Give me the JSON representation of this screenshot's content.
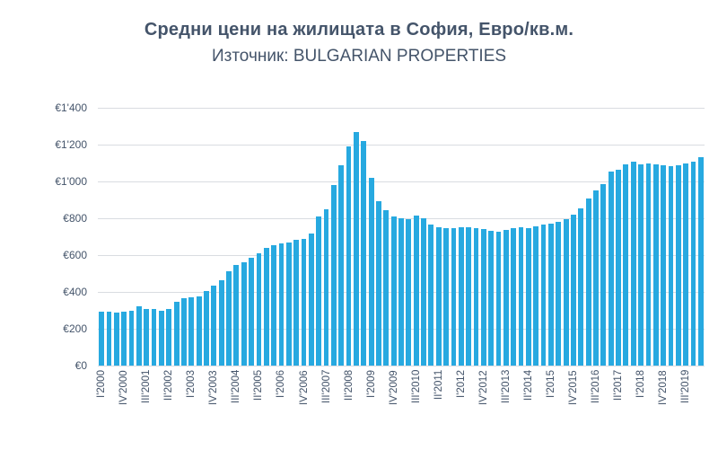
{
  "chart": {
    "title": "Средни цени на жилищата в София, Евро/кв.м.",
    "subtitle": "Източник: BULGARIAN PROPERTIES"
  },
  "chart_data": {
    "type": "bar",
    "title": "Средни цени на жилищата в София, Евро/кв.м.",
    "source": "BULGARIAN PROPERTIES",
    "unit": "EUR per sq.m.",
    "bar_color": "#27A9E0",
    "grid": "horizontal",
    "ylim": [
      0,
      1400
    ],
    "y_ticks": [
      {
        "label": "€0",
        "value": 0
      },
      {
        "label": "€200",
        "value": 200
      },
      {
        "label": "€400",
        "value": 400
      },
      {
        "label": "€600",
        "value": 600
      },
      {
        "label": "€800",
        "value": 800
      },
      {
        "label": "€1'000",
        "value": 1000
      },
      {
        "label": "€1'200",
        "value": 1200
      },
      {
        "label": "€1'400",
        "value": 1400
      }
    ],
    "x_tick_interval": 3,
    "x_tick_labels": [
      "I'2000",
      "IV'2000",
      "III'2001",
      "II'2002",
      "I'2003",
      "IV'2003",
      "III'2004",
      "II'2005",
      "I'2006",
      "IV'2006",
      "III'2007",
      "II'2008",
      "I'2009",
      "IV'2009",
      "III'2010",
      "II'2011",
      "I'2012",
      "IV'2012",
      "III'2013",
      "II'2014",
      "I'2015",
      "IV'2015",
      "III'2016",
      "II'2017",
      "I'2018",
      "IV'2018",
      "III'2019"
    ],
    "categories": [
      "I'2000",
      "II'2000",
      "III'2000",
      "IV'2000",
      "I'2001",
      "II'2001",
      "III'2001",
      "IV'2001",
      "I'2002",
      "II'2002",
      "III'2002",
      "IV'2002",
      "I'2003",
      "II'2003",
      "III'2003",
      "IV'2003",
      "I'2004",
      "II'2004",
      "III'2004",
      "IV'2004",
      "I'2005",
      "II'2005",
      "III'2005",
      "IV'2005",
      "I'2006",
      "II'2006",
      "III'2006",
      "IV'2006",
      "I'2007",
      "II'2007",
      "III'2007",
      "IV'2007",
      "I'2008",
      "II'2008",
      "III'2008",
      "IV'2008",
      "I'2009",
      "II'2009",
      "III'2009",
      "IV'2009",
      "I'2010",
      "II'2010",
      "III'2010",
      "IV'2010",
      "I'2011",
      "II'2011",
      "III'2011",
      "IV'2011",
      "I'2012",
      "II'2012",
      "III'2012",
      "IV'2012",
      "I'2013",
      "II'2013",
      "III'2013",
      "IV'2013",
      "I'2014",
      "II'2014",
      "III'2014",
      "IV'2014",
      "I'2015",
      "II'2015",
      "III'2015",
      "IV'2015",
      "I'2016",
      "II'2016",
      "III'2016",
      "IV'2016",
      "I'2017",
      "II'2017",
      "III'2017",
      "IV'2017",
      "I'2018",
      "II'2018",
      "III'2018",
      "IV'2018",
      "I'2019",
      "II'2019",
      "III'2019",
      "IV'2019",
      "I'2020"
    ],
    "values": [
      293,
      293,
      290,
      293,
      296,
      322,
      306,
      305,
      298,
      306,
      345,
      366,
      371,
      374,
      406,
      435,
      464,
      513,
      548,
      563,
      585,
      610,
      640,
      654,
      661,
      668,
      681,
      690,
      715,
      810,
      850,
      980,
      1090,
      1190,
      1270,
      1220,
      1020,
      895,
      843,
      808,
      798,
      795,
      814,
      798,
      765,
      749,
      744,
      744,
      749,
      752,
      744,
      741,
      730,
      727,
      738,
      744,
      749,
      747,
      757,
      768,
      773,
      780,
      797,
      820,
      855,
      905,
      950,
      985,
      1055,
      1065,
      1095,
      1105,
      1094,
      1100,
      1094,
      1088,
      1083,
      1088,
      1099,
      1107,
      1130
    ]
  }
}
